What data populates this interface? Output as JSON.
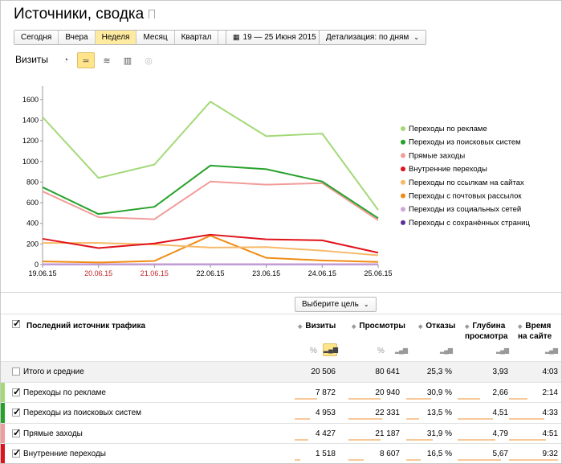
{
  "page": {
    "title": "Источники, сводка"
  },
  "period": {
    "buttons": [
      "Сегодня",
      "Вчера",
      "Неделя",
      "Месяц",
      "Квартал",
      "Год"
    ],
    "active": "Неделя",
    "date_range": "19 — 25 Июня 2015",
    "detail": "Детализация: по дням"
  },
  "chart_section": {
    "label": "Визиты"
  },
  "chart_data": {
    "type": "line",
    "x": [
      "19.06.15",
      "20.06.15",
      "21.06.15",
      "22.06.15",
      "23.06.15",
      "24.06.15",
      "25.06.15"
    ],
    "weekend_x": [
      "20.06.15",
      "21.06.15"
    ],
    "ylim": [
      0,
      1700
    ],
    "yticks": [
      0,
      200,
      400,
      600,
      800,
      1000,
      1200,
      1400,
      1600
    ],
    "legend_position": "right",
    "series": [
      {
        "name": "Переходы по рекламе",
        "color": "#a3d977",
        "values": [
          1430,
          840,
          970,
          1580,
          1245,
          1270,
          530
        ]
      },
      {
        "name": "Переходы из поисковых систем",
        "color": "#26a22b",
        "values": [
          750,
          490,
          560,
          960,
          925,
          805,
          450
        ]
      },
      {
        "name": "Прямые заходы",
        "color": "#f19c99",
        "values": [
          710,
          460,
          440,
          805,
          775,
          790,
          430
        ]
      },
      {
        "name": "Внутренние переходы",
        "color": "#e0121b",
        "values": [
          250,
          160,
          205,
          290,
          245,
          235,
          115
        ]
      },
      {
        "name": "Переходы по ссылкам на сайтах",
        "color": "#f6b968",
        "values": [
          210,
          210,
          195,
          165,
          170,
          135,
          90
        ]
      },
      {
        "name": "Переходы с почтовых рассылок",
        "color": "#f08c14",
        "values": [
          30,
          20,
          35,
          280,
          65,
          40,
          25
        ]
      },
      {
        "name": "Переходы из социальных сетей",
        "color": "#cfa7d9",
        "values": [
          5,
          5,
          5,
          5,
          5,
          5,
          5
        ]
      },
      {
        "name": "Переходы с сохранённых страниц",
        "color": "#5b2e9c",
        "values": [
          2,
          2,
          2,
          2,
          2,
          2,
          2
        ]
      }
    ]
  },
  "table": {
    "goal_button": "Выберите цель",
    "dim_header": "Последний источник трафика",
    "columns": [
      "Визиты",
      "Просмотры",
      "Отказы",
      "Глубина просмотра",
      "Время на сайте"
    ],
    "pct_label": "%",
    "rows": [
      {
        "label": "Итого и средние",
        "values": [
          "20 506",
          "80 641",
          "25,3 %",
          "3,93",
          "4:03"
        ],
        "color": ""
      },
      {
        "label": "Переходы по рекламе",
        "values": [
          "7 872",
          "20 940",
          "30,9 %",
          "2,66",
          "2:14"
        ],
        "color": "#a3d977"
      },
      {
        "label": "Переходы из поисковых систем",
        "values": [
          "4 953",
          "22 331",
          "13,5 %",
          "4,51",
          "4:33"
        ],
        "color": "#26a22b"
      },
      {
        "label": "Прямые заходы",
        "values": [
          "4 427",
          "21 187",
          "31,9 %",
          "4,79",
          "4:51"
        ],
        "color": "#f19c99"
      },
      {
        "label": "Внутренние переходы",
        "values": [
          "1 518",
          "8 607",
          "16,5 %",
          "5,67",
          "9:32"
        ],
        "color": "#e0121b"
      }
    ],
    "bar_fractions": [
      [
        1.0,
        1.0,
        1.0,
        1.0,
        1.0
      ],
      [
        0.55,
        0.62,
        0.55,
        0.45,
        0.38
      ],
      [
        0.38,
        0.65,
        0.28,
        0.7,
        0.72
      ],
      [
        0.34,
        0.62,
        0.58,
        0.74,
        0.76
      ],
      [
        0.14,
        0.3,
        0.32,
        0.86,
        1.0
      ]
    ]
  }
}
